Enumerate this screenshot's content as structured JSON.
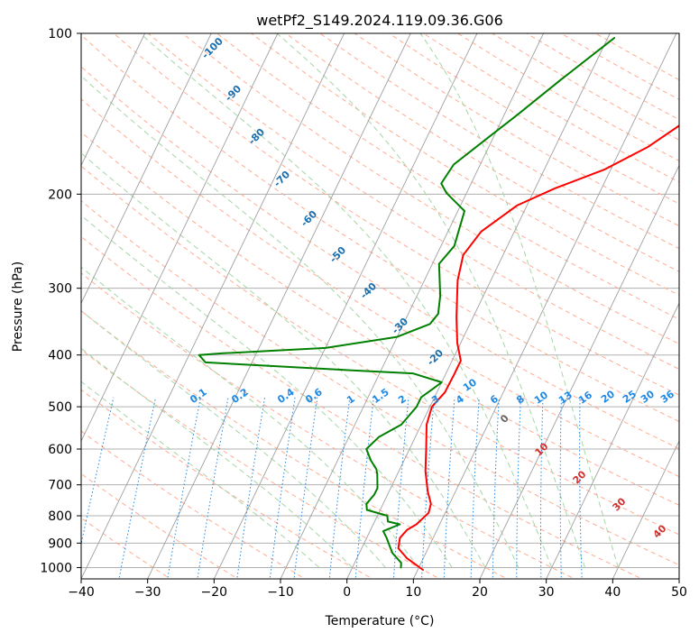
{
  "chart_data": {
    "type": "line",
    "title": "wetPf2_S149.2024.119.09.36.G06",
    "xlabel": "Temperature (°C)",
    "ylabel": "Pressure (hPa)",
    "xlim": [
      -40,
      50
    ],
    "ylim": [
      1050,
      100
    ],
    "y_scale": "log",
    "x_ticks": [
      "−40",
      "−30",
      "−20",
      "−10",
      "0",
      "10",
      "20",
      "30",
      "40",
      "50"
    ],
    "y_ticks": [
      "100",
      "200",
      "300",
      "400",
      "500",
      "600",
      "700",
      "800",
      "900",
      "1000"
    ],
    "grid": true,
    "colors": {
      "temperature": "#ff0000",
      "dewpoint": "#008000",
      "isotherm": "#a0a0a0",
      "dry_adiabat": "#ffab91",
      "moist_adiabat": "#a5d6a7",
      "mixing_ratio": "#1e88e5",
      "isotherm_label": "#1a6fb0",
      "moist_label": "#d32f2f",
      "zero_label": "#666666"
    },
    "series": [
      {
        "key": "temperature",
        "points": [
          [
            10.8,
            1010
          ],
          [
            7.5,
            960
          ],
          [
            5.5,
            920
          ],
          [
            5.0,
            880
          ],
          [
            5.5,
            850
          ],
          [
            6.5,
            830
          ],
          [
            7.5,
            790
          ],
          [
            7.2,
            760
          ],
          [
            5.8,
            720
          ],
          [
            4.0,
            660
          ],
          [
            2.5,
            600
          ],
          [
            0.8,
            540
          ],
          [
            0.3,
            500
          ],
          [
            1.2,
            470
          ],
          [
            1.3,
            435
          ],
          [
            1.3,
            410
          ],
          [
            -0.5,
            380
          ],
          [
            -2.5,
            340
          ],
          [
            -5.0,
            290
          ],
          [
            -6.0,
            260
          ],
          [
            -5.0,
            235
          ],
          [
            -1.5,
            210
          ],
          [
            3.0,
            195
          ],
          [
            9.0,
            180
          ],
          [
            14.0,
            163
          ],
          [
            18.5,
            143
          ],
          [
            22.0,
            128
          ],
          [
            25.0,
            116
          ],
          [
            26.5,
            108
          ],
          [
            27.5,
            100
          ]
        ]
      },
      {
        "key": "dewpoint",
        "points": [
          [
            7.3,
            1000
          ],
          [
            7.0,
            980
          ],
          [
            5.0,
            940
          ],
          [
            4.0,
            910
          ],
          [
            3.0,
            880
          ],
          [
            2.0,
            855
          ],
          [
            4.0,
            830
          ],
          [
            2.0,
            820
          ],
          [
            1.5,
            800
          ],
          [
            -2.0,
            780
          ],
          [
            -2.5,
            760
          ],
          [
            -2.0,
            730
          ],
          [
            -2.0,
            710
          ],
          [
            -3.0,
            670
          ],
          [
            -3.5,
            655
          ],
          [
            -5.0,
            630
          ],
          [
            -6.5,
            600
          ],
          [
            -5.5,
            570
          ],
          [
            -3.0,
            540
          ],
          [
            -2.0,
            500
          ],
          [
            -2.0,
            480
          ],
          [
            -1.0,
            465
          ],
          [
            0.0,
            450
          ],
          [
            -5.0,
            433
          ],
          [
            -15.0,
            427
          ],
          [
            -37.0,
            413
          ],
          [
            -38.5,
            400
          ],
          [
            -35.0,
            397
          ],
          [
            -20.0,
            388
          ],
          [
            -10.0,
            370
          ],
          [
            -6.0,
            350
          ],
          [
            -5.5,
            335
          ],
          [
            -6.5,
            310
          ],
          [
            -9.0,
            270
          ],
          [
            -8.0,
            250
          ],
          [
            -9.0,
            215
          ],
          [
            -13.0,
            199
          ],
          [
            -14.5,
            191
          ],
          [
            -14.0,
            176
          ],
          [
            -11.0,
            158
          ],
          [
            -8.0,
            142
          ],
          [
            -4.0,
            122
          ],
          [
            1.0,
            102
          ]
        ]
      }
    ],
    "isotherm_labels": [
      "-100",
      "-90",
      "-80",
      "-70",
      "-60",
      "-50",
      "-40",
      "-30",
      "-20",
      "-10"
    ],
    "mixing_ratio_labels": [
      "0.1",
      "0.2",
      "0.4",
      "0.6",
      "1",
      "1.5",
      "2",
      "3",
      "4",
      "6",
      "8",
      "10",
      "13",
      "16",
      "20",
      "25",
      "30",
      "36"
    ],
    "zero_label": "0",
    "moist_labels": [
      "10",
      "20",
      "30",
      "40"
    ]
  }
}
